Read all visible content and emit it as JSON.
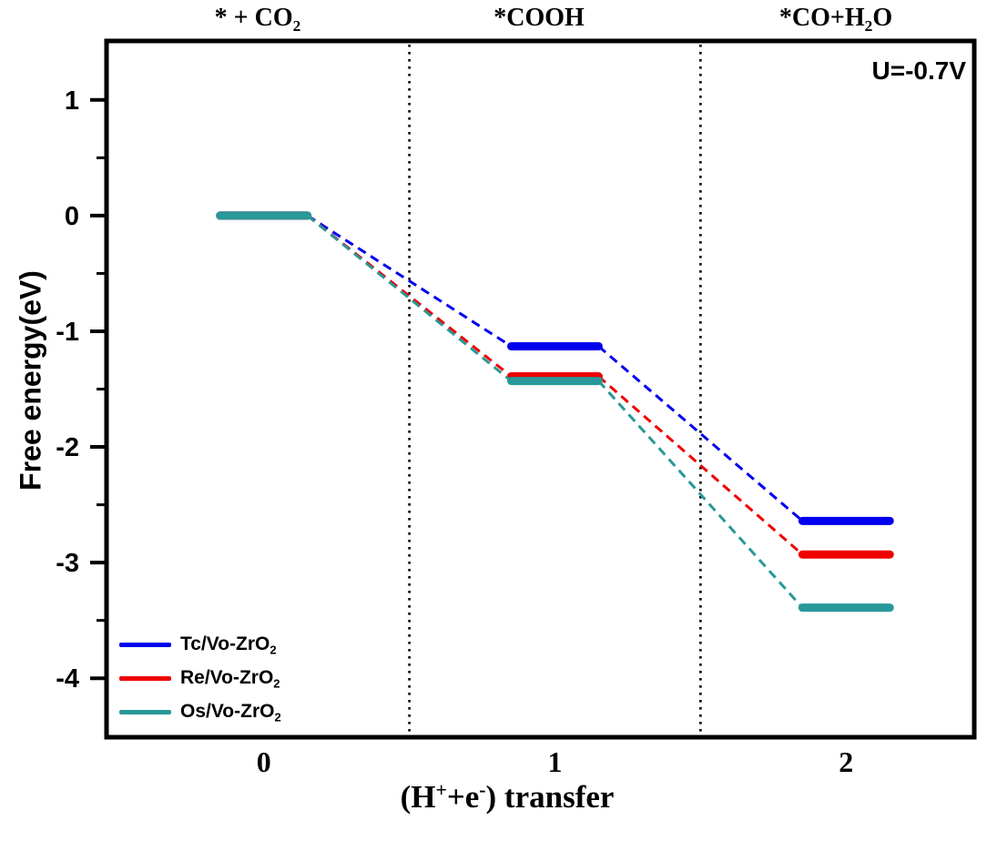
{
  "chart_data": {
    "type": "line",
    "subtype": "free-energy-step-diagram",
    "title": "",
    "ylabel": "Free energy(eV)",
    "xlabel": "(H+ + e-) transfer",
    "xlabel_segments": [
      {
        "t": "(H"
      },
      {
        "t": "+",
        "style": "sup"
      },
      {
        "t": "+e"
      },
      {
        "t": "-",
        "style": "sup"
      },
      {
        "t": ") transfer"
      }
    ],
    "annotation": "U=-0.7V",
    "step_labels": [
      "* + CO2",
      "*COOH",
      "*CO+H2O"
    ],
    "step_labels_segments": [
      [
        {
          "t": "* + CO"
        },
        {
          "t": "2",
          "style": "sub"
        }
      ],
      [
        {
          "t": "*COOH"
        }
      ],
      [
        {
          "t": "*CO+H"
        },
        {
          "t": "2",
          "style": "sub"
        },
        {
          "t": "O"
        }
      ]
    ],
    "x": [
      0,
      1,
      2
    ],
    "x_ticks": [
      "0",
      "1",
      "2"
    ],
    "y_ticks": [
      "1",
      "0",
      "-1",
      "-2",
      "-3",
      "-4"
    ],
    "y_tick_values": [
      1,
      0,
      -1,
      -2,
      -3,
      -4
    ],
    "y_minor_tick_values": [
      0.5,
      -0.5,
      -1.5,
      -2.5,
      -3.5
    ],
    "xlim": [
      -0.54,
      2.44
    ],
    "ylim": [
      -4.51,
      1.51
    ],
    "separators_x": [
      0.5,
      1.5
    ],
    "level_half_width": 0.15,
    "grid": "off",
    "legend_position": "lower-left",
    "series": [
      {
        "name": "Tc/Vo-ZrO2",
        "label_segments": [
          {
            "t": "Tc/Vo-ZrO"
          },
          {
            "t": "2",
            "style": "sub"
          }
        ],
        "color": "#0000EE",
        "values": [
          0,
          -1.13,
          -2.64
        ]
      },
      {
        "name": "Re/Vo-ZrO2",
        "label_segments": [
          {
            "t": "Re/Vo-ZrO"
          },
          {
            "t": "2",
            "style": "sub"
          }
        ],
        "color": "#EE0000",
        "values": [
          0,
          -1.39,
          -2.93
        ]
      },
      {
        "name": "Os/Vo-ZrO2",
        "label_segments": [
          {
            "t": "Os/Vo-ZrO"
          },
          {
            "t": "2",
            "style": "sub"
          }
        ],
        "color": "#289898",
        "values": [
          0,
          -1.43,
          -3.39
        ]
      }
    ]
  }
}
